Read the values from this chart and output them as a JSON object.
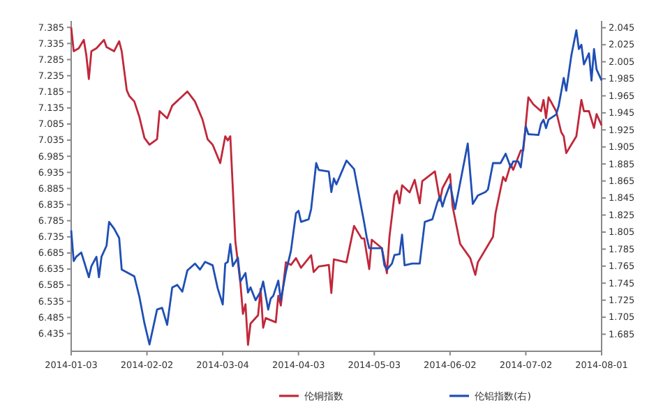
{
  "chart_data": {
    "type": "line",
    "xlim": [
      "2014-01-03",
      "2014-08-01"
    ],
    "xticks": [
      "2014-01-03",
      "2014-02-02",
      "2014-03-04",
      "2014-04-03",
      "2014-05-03",
      "2014-06-02",
      "2014-07-02",
      "2014-08-01"
    ],
    "ylim": [
      6.38,
      7.405
    ],
    "yticks": [
      6.435,
      6.485,
      6.535,
      6.585,
      6.635,
      6.685,
      6.735,
      6.785,
      6.835,
      6.885,
      6.935,
      6.985,
      7.035,
      7.085,
      7.135,
      7.185,
      7.235,
      7.285,
      7.335,
      7.385
    ],
    "y2lim": [
      1.665,
      2.053
    ],
    "y2ticks": [
      1.685,
      1.705,
      1.725,
      1.745,
      1.765,
      1.785,
      1.805,
      1.825,
      1.845,
      1.865,
      1.885,
      1.905,
      1.925,
      1.945,
      1.965,
      1.985,
      2.005,
      2.025,
      2.045
    ],
    "legend": "bottom",
    "grid": false,
    "marker": "none",
    "line_style": "solid",
    "series": [
      {
        "name": "伦铜指数",
        "color": "#c0283a",
        "x": [
          "2014-01-03",
          "2014-01-04",
          "2014-01-06",
          "2014-01-08",
          "2014-01-09",
          "2014-01-10",
          "2014-01-11",
          "2014-01-13",
          "2014-01-16",
          "2014-01-17",
          "2014-01-20",
          "2014-01-22",
          "2014-01-23",
          "2014-01-25",
          "2014-01-26",
          "2014-01-28",
          "2014-01-30",
          "2014-02-01",
          "2014-02-03",
          "2014-02-06",
          "2014-02-07",
          "2014-02-10",
          "2014-02-12",
          "2014-02-18",
          "2014-02-21",
          "2014-02-24",
          "2014-02-26",
          "2014-02-28",
          "2014-03-03",
          "2014-03-05",
          "2014-03-06",
          "2014-03-07",
          "2014-03-09",
          "2014-03-11",
          "2014-03-12",
          "2014-03-13",
          "2014-03-14",
          "2014-03-15",
          "2014-03-18",
          "2014-03-19",
          "2014-03-20",
          "2014-03-21",
          "2014-03-25",
          "2014-03-26",
          "2014-03-27",
          "2014-03-28",
          "2014-03-29",
          "2014-03-31",
          "2014-04-02",
          "2014-04-04",
          "2014-04-08",
          "2014-04-09",
          "2014-04-11",
          "2014-04-15",
          "2014-04-16",
          "2014-04-17",
          "2014-04-22",
          "2014-04-25",
          "2014-04-28",
          "2014-04-29",
          "2014-05-01",
          "2014-05-02",
          "2014-05-06",
          "2014-05-08",
          "2014-05-09",
          "2014-05-11",
          "2014-05-12",
          "2014-05-13",
          "2014-05-14",
          "2014-05-17",
          "2014-05-19",
          "2014-05-21",
          "2014-05-22",
          "2014-05-27",
          "2014-05-29",
          "2014-05-30",
          "2014-06-02",
          "2014-06-03",
          "2014-06-06",
          "2014-06-10",
          "2014-06-12",
          "2014-06-13",
          "2014-06-19",
          "2014-06-20",
          "2014-06-23",
          "2014-06-24",
          "2014-06-26",
          "2014-06-27",
          "2014-06-30",
          "2014-07-01",
          "2014-07-03",
          "2014-07-05",
          "2014-07-08",
          "2014-07-09",
          "2014-07-10",
          "2014-07-11",
          "2014-07-14",
          "2014-07-16",
          "2014-07-17",
          "2014-07-18",
          "2014-07-20",
          "2014-07-22",
          "2014-07-24",
          "2014-07-25",
          "2014-07-27",
          "2014-07-29",
          "2014-07-30",
          "2014-08-01"
        ],
        "values": [
          7.385,
          7.311,
          7.32,
          7.346,
          7.298,
          7.225,
          7.311,
          7.32,
          7.346,
          7.324,
          7.311,
          7.342,
          7.311,
          7.19,
          7.172,
          7.155,
          7.107,
          7.042,
          7.021,
          7.038,
          7.125,
          7.103,
          7.142,
          7.186,
          7.155,
          7.099,
          7.038,
          7.021,
          6.964,
          7.047,
          7.034,
          7.047,
          6.721,
          6.591,
          6.496,
          6.526,
          6.4,
          6.466,
          6.492,
          6.574,
          6.453,
          6.483,
          6.47,
          6.552,
          6.522,
          6.587,
          6.656,
          6.648,
          6.669,
          6.639,
          6.678,
          6.626,
          6.643,
          6.648,
          6.561,
          6.665,
          6.656,
          6.769,
          6.73,
          6.73,
          6.635,
          6.726,
          6.7,
          6.622,
          6.735,
          6.865,
          6.878,
          6.839,
          6.895,
          6.873,
          6.912,
          6.839,
          6.908,
          6.938,
          6.847,
          6.886,
          6.93,
          6.83,
          6.713,
          6.669,
          6.617,
          6.656,
          6.735,
          6.808,
          6.921,
          6.908,
          6.96,
          6.943,
          7.003,
          7.003,
          7.168,
          7.146,
          7.125,
          7.16,
          7.103,
          7.168,
          7.125,
          7.06,
          7.047,
          6.995,
          7.021,
          7.047,
          7.16,
          7.125,
          7.125,
          7.073,
          7.116,
          7.081
        ]
      },
      {
        "name": "伦铝指数(右)",
        "color": "#1f4fb4",
        "axis": "y2",
        "x": [
          "2014-01-03",
          "2014-01-04",
          "2014-01-05",
          "2014-01-07",
          "2014-01-10",
          "2014-01-11",
          "2014-01-13",
          "2014-01-14",
          "2014-01-15",
          "2014-01-17",
          "2014-01-18",
          "2014-01-20",
          "2014-01-22",
          "2014-01-23",
          "2014-01-28",
          "2014-01-30",
          "2014-02-01",
          "2014-02-03",
          "2014-02-06",
          "2014-02-08",
          "2014-02-10",
          "2014-02-12",
          "2014-02-14",
          "2014-02-16",
          "2014-02-18",
          "2014-02-21",
          "2014-02-23",
          "2014-02-25",
          "2014-02-28",
          "2014-03-02",
          "2014-03-04",
          "2014-03-05",
          "2014-03-06",
          "2014-03-07",
          "2014-03-08",
          "2014-03-10",
          "2014-03-11",
          "2014-03-13",
          "2014-03-14",
          "2014-03-15",
          "2014-03-17",
          "2014-03-19",
          "2014-03-20",
          "2014-03-22",
          "2014-03-23",
          "2014-03-24",
          "2014-03-26",
          "2014-03-27",
          "2014-03-29",
          "2014-03-31",
          "2014-04-02",
          "2014-04-03",
          "2014-04-04",
          "2014-04-07",
          "2014-04-08",
          "2014-04-10",
          "2014-04-11",
          "2014-04-15",
          "2014-04-16",
          "2014-04-17",
          "2014-04-18",
          "2014-04-22",
          "2014-04-25",
          "2014-04-29",
          "2014-04-30",
          "2014-05-01",
          "2014-05-06",
          "2014-05-07",
          "2014-05-08",
          "2014-05-10",
          "2014-05-11",
          "2014-05-13",
          "2014-05-14",
          "2014-05-15",
          "2014-05-18",
          "2014-05-21",
          "2014-05-23",
          "2014-05-26",
          "2014-05-28",
          "2014-05-29",
          "2014-05-30",
          "2014-05-31",
          "2014-06-02",
          "2014-06-04",
          "2014-06-09",
          "2014-06-11",
          "2014-06-13",
          "2014-06-16",
          "2014-06-17",
          "2014-06-19",
          "2014-06-22",
          "2014-06-24",
          "2014-06-26",
          "2014-06-27",
          "2014-06-29",
          "2014-06-30",
          "2014-07-02",
          "2014-07-03",
          "2014-07-07",
          "2014-07-08",
          "2014-07-09",
          "2014-07-10",
          "2014-07-11",
          "2014-07-14",
          "2014-07-15",
          "2014-07-17",
          "2014-07-18",
          "2014-07-20",
          "2014-07-22",
          "2014-07-23",
          "2014-07-24",
          "2014-07-25",
          "2014-07-27",
          "2014-07-28",
          "2014-07-29",
          "2014-07-30",
          "2014-08-01"
        ],
        "values": [
          1.807,
          1.771,
          1.776,
          1.781,
          1.752,
          1.765,
          1.776,
          1.752,
          1.776,
          1.789,
          1.817,
          1.809,
          1.798,
          1.761,
          1.753,
          1.729,
          1.698,
          1.673,
          1.714,
          1.716,
          1.696,
          1.74,
          1.743,
          1.735,
          1.76,
          1.768,
          1.761,
          1.77,
          1.766,
          1.739,
          1.72,
          1.768,
          1.77,
          1.791,
          1.765,
          1.775,
          1.747,
          1.757,
          1.734,
          1.74,
          1.725,
          1.735,
          1.747,
          1.714,
          1.727,
          1.73,
          1.748,
          1.725,
          1.758,
          1.783,
          1.827,
          1.83,
          1.817,
          1.82,
          1.832,
          1.886,
          1.878,
          1.876,
          1.852,
          1.868,
          1.861,
          1.889,
          1.879,
          1.816,
          1.799,
          1.786,
          1.786,
          1.766,
          1.761,
          1.768,
          1.778,
          1.779,
          1.802,
          1.766,
          1.768,
          1.768,
          1.817,
          1.82,
          1.84,
          1.847,
          1.835,
          1.845,
          1.861,
          1.832,
          1.909,
          1.838,
          1.848,
          1.852,
          1.855,
          1.886,
          1.886,
          1.897,
          1.881,
          1.888,
          1.888,
          1.881,
          1.929,
          1.92,
          1.919,
          1.932,
          1.937,
          1.927,
          1.937,
          1.943,
          1.953,
          1.986,
          1.971,
          2.012,
          2.042,
          2.02,
          2.025,
          2.002,
          2.015,
          1.983,
          2.02,
          1.996,
          1.983
        ]
      }
    ]
  }
}
